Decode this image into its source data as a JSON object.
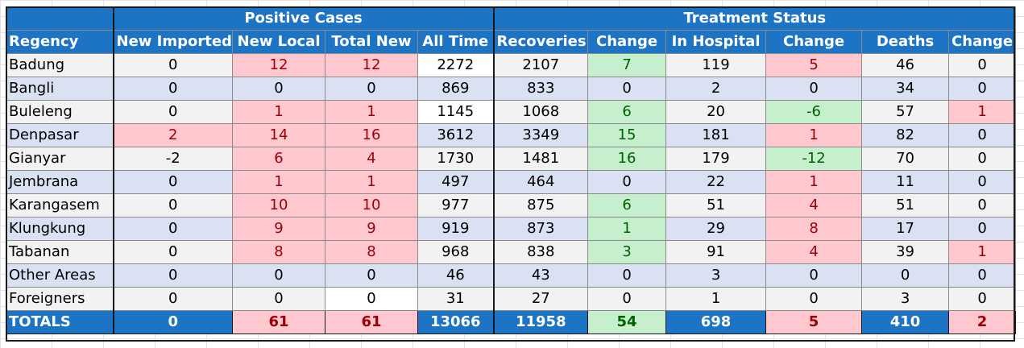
{
  "header": {
    "group_positive": "Positive Cases",
    "group_treatment": "Treatment Status",
    "columns": [
      "Regency",
      "New Imported",
      "New Local",
      "Total New",
      "All Time",
      "Recoveries",
      "Change",
      "In Hospital",
      "Change",
      "Deaths",
      "Change"
    ]
  },
  "rows": [
    {
      "region": "Badung",
      "cells": [
        "0",
        "12",
        "12",
        "2272",
        "2107",
        "7",
        "119",
        "5",
        "46",
        "0"
      ]
    },
    {
      "region": "Bangli",
      "cells": [
        "0",
        "0",
        "0",
        "869",
        "833",
        "0",
        "2",
        "0",
        "34",
        "0"
      ]
    },
    {
      "region": "Buleleng",
      "cells": [
        "0",
        "1",
        "1",
        "1145",
        "1068",
        "6",
        "20",
        "-6",
        "57",
        "1"
      ]
    },
    {
      "region": "Denpasar",
      "cells": [
        "2",
        "14",
        "16",
        "3612",
        "3349",
        "15",
        "181",
        "1",
        "82",
        "0"
      ]
    },
    {
      "region": "Gianyar",
      "cells": [
        "-2",
        "6",
        "4",
        "1730",
        "1481",
        "16",
        "179",
        "-12",
        "70",
        "0"
      ]
    },
    {
      "region": "Jembrana",
      "cells": [
        "0",
        "1",
        "1",
        "497",
        "464",
        "0",
        "22",
        "1",
        "11",
        "0"
      ]
    },
    {
      "region": "Karangasem",
      "cells": [
        "0",
        "10",
        "10",
        "977",
        "875",
        "6",
        "51",
        "4",
        "51",
        "0"
      ]
    },
    {
      "region": "Klungkung",
      "cells": [
        "0",
        "9",
        "9",
        "919",
        "873",
        "1",
        "29",
        "8",
        "17",
        "0"
      ]
    },
    {
      "region": "Tabanan",
      "cells": [
        "0",
        "8",
        "8",
        "968",
        "838",
        "3",
        "91",
        "4",
        "39",
        "1"
      ]
    },
    {
      "region": "Other Areas",
      "cells": [
        "0",
        "0",
        "0",
        "46",
        "43",
        "0",
        "3",
        "0",
        "0",
        "0"
      ]
    },
    {
      "region": "Foreigners",
      "cells": [
        "0",
        "0",
        "0",
        "31",
        "27",
        "0",
        "1",
        "0",
        "3",
        "0"
      ]
    }
  ],
  "totals": {
    "label": "TOTALS",
    "cells": [
      "0",
      "61",
      "61",
      "13066",
      "11958",
      "54",
      "698",
      "5",
      "410",
      "2"
    ]
  },
  "colors": {
    "header_blue": "#1d74c4",
    "pink_fill": "#ffc7ce",
    "pink_text": "#9c0006",
    "green_fill": "#c6efce",
    "green_text": "#006100",
    "row_gray": "#f2f2f2",
    "row_blue": "#d9e1f2"
  }
}
